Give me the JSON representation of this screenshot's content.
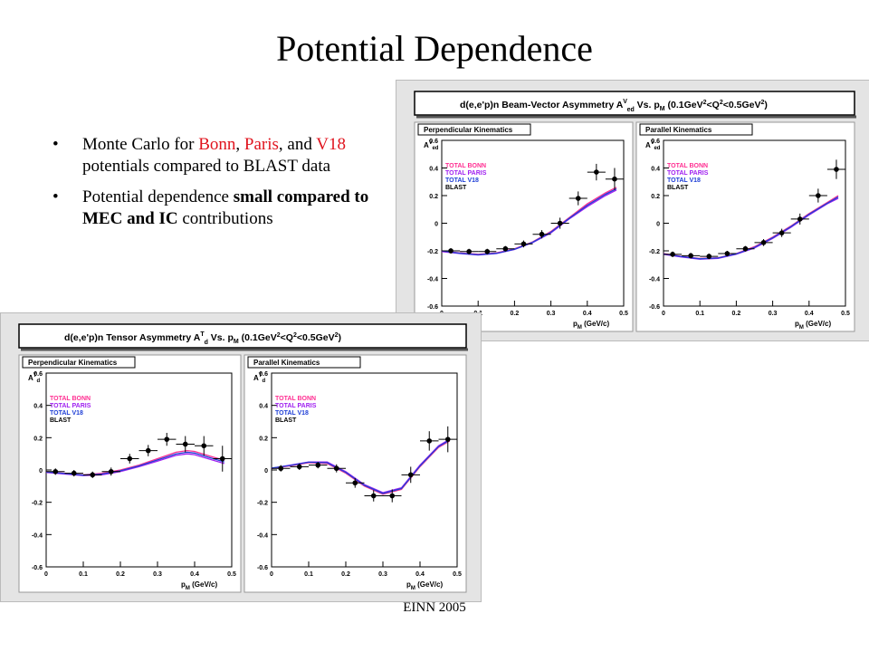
{
  "slide": {
    "title": "Potential Dependence",
    "footer": "EINN 2005",
    "bullets": [
      {
        "parts": [
          {
            "text": "Monte Carlo  for ",
            "style": "normal"
          },
          {
            "text": "Bonn",
            "style": "red"
          },
          {
            "text": ", ",
            "style": "normal"
          },
          {
            "text": "Paris",
            "style": "red"
          },
          {
            "text": ", and ",
            "style": "normal"
          },
          {
            "text": "V18",
            "style": "red"
          },
          {
            "text": " potentials compared to BLAST  data",
            "style": "normal"
          }
        ]
      },
      {
        "parts": [
          {
            "text": "Potential dependence ",
            "style": "normal"
          },
          {
            "text": "small compared to MEC and IC",
            "style": "bold"
          },
          {
            "text": " contributions",
            "style": "normal"
          }
        ]
      }
    ]
  },
  "colors": {
    "bonn": "#ff2f92",
    "paris": "#a020f0",
    "v18": "#1f3fd6",
    "blast": "#000000",
    "panel_bg": "#e4e4e4",
    "title_box": "#ffffff"
  },
  "chart_data": [
    {
      "type": "scatter",
      "title": "d(e,e'p)n Beam-Vector Asymmetry A  Vs. p  (0.1GeV  <Q  <0.5GeV  )",
      "title_main": "d(e,e'p)n Beam-Vector Asymmetry A",
      "title_sup": "V",
      "title_sub": "ed",
      "title_mid": " Vs. p",
      "title_mid_sub": "M",
      "title_rest": " (0.1GeV",
      "title_sup2": "2",
      "title_rest2": "<Q",
      "title_sup3": "2",
      "title_rest3": "<0.5GeV",
      "title_sup4": "2",
      "title_end": ")",
      "legend": [
        "TOTAL BONN",
        "TOTAL PARIS",
        "TOTAL V18",
        "BLAST"
      ],
      "ylabel": "A",
      "ylabel_sup": "V",
      "ylabel_sub": "ed",
      "xlabel": "p",
      "xlabel_sub": "M",
      "xlabel_unit": " (GeV/c)",
      "xlim": [
        0,
        0.5
      ],
      "ylim": [
        -0.6,
        0.6
      ],
      "xticks": [
        "0",
        "0.1",
        "0.2",
        "0.3",
        "0.4",
        "0.5"
      ],
      "yticks": [
        "-0.6",
        "-0.4",
        "-0.2",
        "0",
        "0.2",
        "0.4",
        "0.6"
      ],
      "panels": [
        {
          "label": "Perpendicular Kinematics",
          "blast": {
            "x": [
              0.025,
              0.075,
              0.125,
              0.175,
              0.225,
              0.275,
              0.325,
              0.375,
              0.425,
              0.475
            ],
            "y": [
              -0.2,
              -0.205,
              -0.205,
              -0.185,
              -0.15,
              -0.08,
              0.0,
              0.18,
              0.37,
              0.32
            ],
            "yerr": [
              0.02,
              0.02,
              0.02,
              0.02,
              0.025,
              0.03,
              0.04,
              0.05,
              0.06,
              0.08
            ]
          },
          "series": [
            {
              "name": "TOTAL BONN",
              "x": [
                0,
                0.05,
                0.1,
                0.15,
                0.2,
                0.25,
                0.3,
                0.35,
                0.4,
                0.45,
                0.48
              ],
              "y": [
                -0.2,
                -0.215,
                -0.225,
                -0.215,
                -0.185,
                -0.135,
                -0.06,
                0.04,
                0.14,
                0.22,
                0.26
              ]
            },
            {
              "name": "TOTAL PARIS",
              "x": [
                0,
                0.05,
                0.1,
                0.15,
                0.2,
                0.25,
                0.3,
                0.35,
                0.4,
                0.45,
                0.48
              ],
              "y": [
                -0.205,
                -0.22,
                -0.23,
                -0.22,
                -0.19,
                -0.14,
                -0.07,
                0.03,
                0.12,
                0.2,
                0.24
              ]
            },
            {
              "name": "TOTAL V18",
              "x": [
                0,
                0.05,
                0.1,
                0.15,
                0.2,
                0.25,
                0.3,
                0.35,
                0.4,
                0.45,
                0.48
              ],
              "y": [
                -0.2,
                -0.218,
                -0.228,
                -0.218,
                -0.188,
                -0.138,
                -0.065,
                0.035,
                0.13,
                0.21,
                0.25
              ]
            }
          ]
        },
        {
          "label": "Parallel Kinematics",
          "blast": {
            "x": [
              0.025,
              0.075,
              0.125,
              0.175,
              0.225,
              0.275,
              0.325,
              0.375,
              0.425,
              0.475
            ],
            "y": [
              -0.225,
              -0.235,
              -0.24,
              -0.22,
              -0.185,
              -0.14,
              -0.07,
              0.03,
              0.2,
              0.39
            ],
            "yerr": [
              0.02,
              0.02,
              0.02,
              0.02,
              0.02,
              0.025,
              0.03,
              0.04,
              0.05,
              0.07
            ]
          },
          "series": [
            {
              "name": "TOTAL BONN",
              "x": [
                0,
                0.05,
                0.1,
                0.15,
                0.2,
                0.25,
                0.3,
                0.35,
                0.4,
                0.45,
                0.48
              ],
              "y": [
                -0.22,
                -0.24,
                -0.255,
                -0.25,
                -0.22,
                -0.17,
                -0.1,
                -0.02,
                0.07,
                0.15,
                0.2
              ]
            },
            {
              "name": "TOTAL PARIS",
              "x": [
                0,
                0.05,
                0.1,
                0.15,
                0.2,
                0.25,
                0.3,
                0.35,
                0.4,
                0.45,
                0.48
              ],
              "y": [
                -0.225,
                -0.245,
                -0.26,
                -0.255,
                -0.225,
                -0.18,
                -0.11,
                -0.03,
                0.06,
                0.14,
                0.18
              ]
            },
            {
              "name": "TOTAL V18",
              "x": [
                0,
                0.05,
                0.1,
                0.15,
                0.2,
                0.25,
                0.3,
                0.35,
                0.4,
                0.45,
                0.48
              ],
              "y": [
                -0.222,
                -0.242,
                -0.258,
                -0.252,
                -0.222,
                -0.175,
                -0.105,
                -0.025,
                0.065,
                0.145,
                0.19
              ]
            }
          ]
        }
      ]
    },
    {
      "type": "scatter",
      "title": "d(e,e'p)n Tensor Asymmetry A  Vs. p  (0.1GeV  <Q  <0.5GeV  )",
      "title_main": "d(e,e'p)n Tensor Asymmetry A",
      "title_sup": "T",
      "title_sub": "d",
      "title_mid": " Vs. p",
      "title_mid_sub": "M",
      "title_rest": " (0.1GeV",
      "title_sup2": "2",
      "title_rest2": "<Q",
      "title_sup3": "2",
      "title_rest3": "<0.5GeV",
      "title_sup4": "2",
      "title_end": ")",
      "legend": [
        "TOTAL BONN",
        "TOTAL PARIS",
        "TOTAL V18",
        "BLAST"
      ],
      "ylabel": "A",
      "ylabel_sup": "T",
      "ylabel_sub": "d",
      "xlabel": "p",
      "xlabel_sub": "M",
      "xlabel_unit": " (GeV/c)",
      "xlim": [
        0,
        0.5
      ],
      "ylim": [
        -0.6,
        0.6
      ],
      "xticks": [
        "0",
        "0.1",
        "0.2",
        "0.3",
        "0.4",
        "0.5"
      ],
      "yticks": [
        "-0.6",
        "-0.4",
        "-0.2",
        "0",
        "0.2",
        "0.4",
        "0.6"
      ],
      "panels": [
        {
          "label": "Perpendicular Kinematics",
          "blast": {
            "x": [
              0.025,
              0.075,
              0.125,
              0.175,
              0.225,
              0.275,
              0.325,
              0.375,
              0.425,
              0.475
            ],
            "y": [
              -0.01,
              -0.02,
              -0.03,
              -0.01,
              0.07,
              0.12,
              0.19,
              0.16,
              0.15,
              0.07
            ],
            "yerr": [
              0.02,
              0.02,
              0.02,
              0.025,
              0.03,
              0.035,
              0.04,
              0.05,
              0.06,
              0.08
            ]
          },
          "series": [
            {
              "name": "TOTAL BONN",
              "x": [
                0,
                0.05,
                0.1,
                0.15,
                0.2,
                0.25,
                0.3,
                0.35,
                0.38,
                0.4,
                0.45,
                0.48
              ],
              "y": [
                -0.01,
                -0.02,
                -0.03,
                -0.02,
                0.0,
                0.03,
                0.07,
                0.11,
                0.12,
                0.115,
                0.08,
                0.06
              ]
            },
            {
              "name": "TOTAL PARIS",
              "x": [
                0,
                0.05,
                0.1,
                0.15,
                0.2,
                0.25,
                0.3,
                0.35,
                0.38,
                0.4,
                0.45,
                0.48
              ],
              "y": [
                -0.015,
                -0.025,
                -0.035,
                -0.03,
                -0.01,
                0.02,
                0.055,
                0.09,
                0.1,
                0.095,
                0.06,
                0.04
              ]
            },
            {
              "name": "TOTAL V18",
              "x": [
                0,
                0.05,
                0.1,
                0.15,
                0.2,
                0.25,
                0.3,
                0.35,
                0.38,
                0.4,
                0.45,
                0.48
              ],
              "y": [
                -0.012,
                -0.022,
                -0.032,
                -0.025,
                -0.005,
                0.025,
                0.062,
                0.1,
                0.11,
                0.105,
                0.07,
                0.05
              ]
            }
          ]
        },
        {
          "label": "Parallel Kinematics",
          "blast": {
            "x": [
              0.025,
              0.075,
              0.125,
              0.175,
              0.225,
              0.275,
              0.325,
              0.375,
              0.425,
              0.475
            ],
            "y": [
              0.01,
              0.02,
              0.03,
              0.01,
              -0.08,
              -0.16,
              -0.16,
              -0.03,
              0.18,
              0.19
            ],
            "yerr": [
              0.02,
              0.02,
              0.02,
              0.025,
              0.03,
              0.035,
              0.04,
              0.05,
              0.06,
              0.08
            ]
          },
          "series": [
            {
              "name": "TOTAL BONN",
              "x": [
                0,
                0.05,
                0.1,
                0.15,
                0.2,
                0.25,
                0.3,
                0.35,
                0.4,
                0.45,
                0.48
              ],
              "y": [
                0.01,
                0.025,
                0.045,
                0.04,
                -0.02,
                -0.1,
                -0.15,
                -0.12,
                0.02,
                0.14,
                0.18
              ]
            },
            {
              "name": "TOTAL PARIS",
              "x": [
                0,
                0.05,
                0.1,
                0.15,
                0.2,
                0.25,
                0.3,
                0.35,
                0.4,
                0.45,
                0.48
              ],
              "y": [
                0.01,
                0.03,
                0.05,
                0.05,
                -0.01,
                -0.09,
                -0.14,
                -0.11,
                0.03,
                0.15,
                0.19
              ]
            },
            {
              "name": "TOTAL V18",
              "x": [
                0,
                0.05,
                0.1,
                0.15,
                0.2,
                0.25,
                0.3,
                0.35,
                0.4,
                0.45,
                0.48
              ],
              "y": [
                0.012,
                0.028,
                0.048,
                0.045,
                -0.015,
                -0.095,
                -0.145,
                -0.115,
                0.025,
                0.145,
                0.185
              ]
            }
          ]
        }
      ]
    }
  ]
}
